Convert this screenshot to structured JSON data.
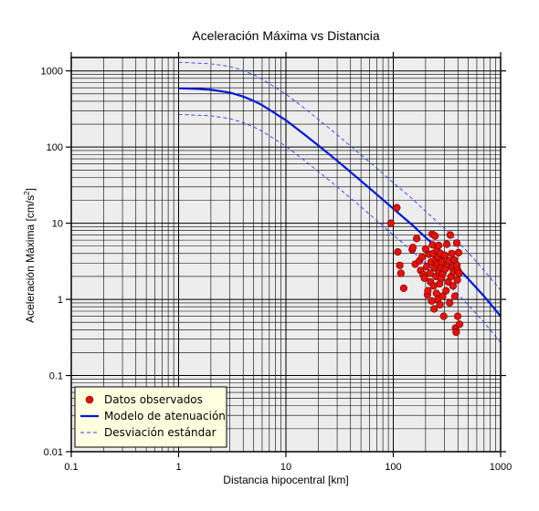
{
  "chart_data": {
    "type": "scatter",
    "title": "Aceleración Máxima vs Distancia",
    "xlabel": "Distancia hipocentral [km]",
    "ylabel_main": "Aceleración Máxima [cm/s",
    "ylabel_sup": "2",
    "ylabel_close": "]",
    "xscale": "log",
    "yscale": "log",
    "xlim": [
      0.1,
      1000
    ],
    "ylim": [
      0.01,
      1500
    ],
    "grid": true,
    "legend_position": "bottom-left",
    "x_tick_labels": [
      "0.1",
      "1",
      "10",
      "100",
      "1000"
    ],
    "y_tick_labels": [
      "0.01",
      "0.1",
      "1",
      "10",
      "100",
      "1000"
    ],
    "colors": {
      "background": "#ededed",
      "points": "#e3120b",
      "model": "#0018d8",
      "deviation": "#2a3cff",
      "legend_bg": "#ffffe0"
    },
    "series": [
      {
        "name": "Datos observados",
        "kind": "points",
        "points": [
          [
            95,
            10
          ],
          [
            108,
            16
          ],
          [
            110,
            4.2
          ],
          [
            115,
            2.8
          ],
          [
            118,
            2.2
          ],
          [
            125,
            1.4
          ],
          [
            150,
            4.5
          ],
          [
            152,
            4.8
          ],
          [
            160,
            2.9
          ],
          [
            165,
            6.3
          ],
          [
            175,
            3.2
          ],
          [
            180,
            2.4
          ],
          [
            185,
            3.6
          ],
          [
            190,
            2.1
          ],
          [
            195,
            1.9
          ],
          [
            200,
            4.6
          ],
          [
            205,
            2.7
          ],
          [
            208,
            1.15
          ],
          [
            210,
            1.3
          ],
          [
            215,
            3.9
          ],
          [
            220,
            2.2
          ],
          [
            222,
            1.7
          ],
          [
            225,
            3.1
          ],
          [
            228,
            0.95
          ],
          [
            230,
            7.2
          ],
          [
            232,
            5.2
          ],
          [
            235,
            4.0
          ],
          [
            238,
            1.5
          ],
          [
            240,
            0.75
          ],
          [
            242,
            2.6
          ],
          [
            245,
            6.8
          ],
          [
            248,
            3.3
          ],
          [
            250,
            2.0
          ],
          [
            252,
            1.2
          ],
          [
            255,
            4.4
          ],
          [
            258,
            2.9
          ],
          [
            260,
            1.0
          ],
          [
            262,
            3.6
          ],
          [
            265,
            5.1
          ],
          [
            268,
            2.3
          ],
          [
            270,
            1.6
          ],
          [
            272,
            0.85
          ],
          [
            275,
            4.0
          ],
          [
            278,
            2.6
          ],
          [
            280,
            1.9
          ],
          [
            285,
            3.1
          ],
          [
            288,
            1.1
          ],
          [
            290,
            2.2
          ],
          [
            295,
            0.6
          ],
          [
            300,
            3.8
          ],
          [
            305,
            2.5
          ],
          [
            310,
            1.3
          ],
          [
            315,
            5.3
          ],
          [
            320,
            2.9
          ],
          [
            325,
            1.7
          ],
          [
            330,
            3.2
          ],
          [
            335,
            0.9
          ],
          [
            340,
            7.0
          ],
          [
            345,
            2.0
          ],
          [
            350,
            4.0
          ],
          [
            355,
            2.6
          ],
          [
            360,
            1.5
          ],
          [
            365,
            2.3
          ],
          [
            370,
            3.3
          ],
          [
            375,
            1.1
          ],
          [
            380,
            0.42
          ],
          [
            385,
            0.37
          ],
          [
            390,
            5.5
          ],
          [
            392,
            2.8
          ],
          [
            395,
            1.8
          ],
          [
            398,
            0.6
          ],
          [
            400,
            2.4
          ],
          [
            405,
            4.1
          ],
          [
            410,
            2.2
          ],
          [
            415,
            0.47
          ]
        ]
      },
      {
        "name": "Modelo de atenuación",
        "kind": "line",
        "points": [
          [
            1,
            590
          ],
          [
            1.5,
            580
          ],
          [
            2,
            565
          ],
          [
            3,
            520
          ],
          [
            4,
            460
          ],
          [
            5,
            405
          ],
          [
            6,
            355
          ],
          [
            8,
            275
          ],
          [
            10,
            225
          ],
          [
            15,
            145
          ],
          [
            20,
            105
          ],
          [
            30,
            66
          ],
          [
            50,
            36
          ],
          [
            70,
            24
          ],
          [
            100,
            15.5
          ],
          [
            150,
            9.5
          ],
          [
            200,
            6.5
          ],
          [
            300,
            3.9
          ],
          [
            400,
            2.6
          ],
          [
            500,
            1.85
          ],
          [
            700,
            1.1
          ],
          [
            1000,
            0.6
          ]
        ]
      },
      {
        "name": "Desviación estándar",
        "kind": "dashed",
        "points": [
          [
            1,
            1300
          ],
          [
            2,
            1240
          ],
          [
            3,
            1140
          ],
          [
            4,
            1010
          ],
          [
            5,
            890
          ],
          [
            6,
            780
          ],
          [
            8,
            605
          ],
          [
            10,
            495
          ],
          [
            15,
            320
          ],
          [
            20,
            231
          ],
          [
            30,
            145
          ],
          [
            50,
            79
          ],
          [
            70,
            53
          ],
          [
            100,
            34
          ],
          [
            150,
            21
          ],
          [
            200,
            14.3
          ],
          [
            300,
            8.6
          ],
          [
            400,
            5.7
          ],
          [
            500,
            4.1
          ],
          [
            700,
            2.4
          ],
          [
            1000,
            1.32
          ]
        ]
      },
      {
        "kind": "dashed",
        "points": [
          [
            1,
            268
          ],
          [
            2,
            257
          ],
          [
            3,
            236
          ],
          [
            4,
            209
          ],
          [
            5,
            184
          ],
          [
            6,
            161
          ],
          [
            8,
            125
          ],
          [
            10,
            102
          ],
          [
            15,
            66
          ],
          [
            20,
            48
          ],
          [
            30,
            30
          ],
          [
            50,
            16.4
          ],
          [
            70,
            10.9
          ],
          [
            100,
            7.0
          ],
          [
            150,
            4.3
          ],
          [
            200,
            3.0
          ],
          [
            300,
            1.77
          ],
          [
            400,
            1.18
          ],
          [
            500,
            0.84
          ],
          [
            700,
            0.5
          ],
          [
            1000,
            0.27
          ]
        ]
      }
    ]
  }
}
